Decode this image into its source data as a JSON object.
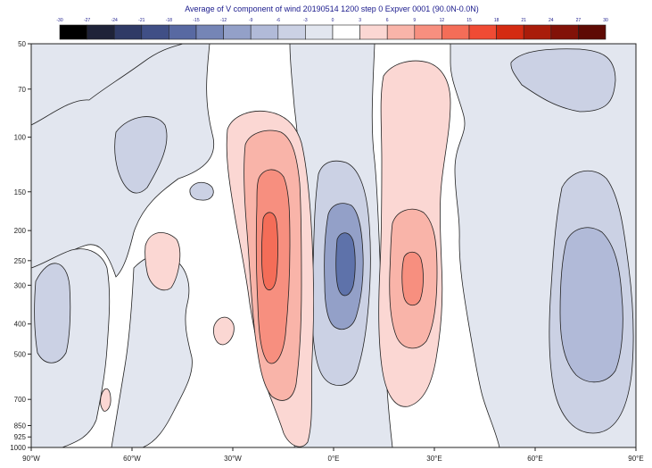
{
  "chart_data": {
    "type": "heatmap",
    "title": "Average of V component of wind 20190514 1200 step 0 Expver 0001 (90.0N-0.0N)",
    "xlabel": "",
    "ylabel": "",
    "x_ticks": [
      "90°W",
      "60°W",
      "30°W",
      "0°E",
      "30°E",
      "60°E",
      "90°E"
    ],
    "x_range": [
      -90,
      90
    ],
    "y_ticks": [
      50,
      70,
      100,
      150,
      200,
      250,
      300,
      400,
      500,
      700,
      850,
      925,
      1000
    ],
    "y_range": [
      50,
      1000
    ],
    "y_scale": "log",
    "colorbar": {
      "levels": [
        -30,
        -27,
        -24,
        -21,
        -18,
        -15,
        -12,
        -9,
        -6,
        -3,
        0,
        3,
        6,
        9,
        12,
        15,
        18,
        21,
        24,
        27,
        30
      ],
      "colors": [
        "#000000",
        "#1e2238",
        "#2f3a66",
        "#404f86",
        "#5869a2",
        "#7585b6",
        "#93a0c8",
        "#b1bad8",
        "#cbd1e4",
        "#e2e6ef",
        "#ffffff",
        "#fbd7d3",
        "#f9b4a9",
        "#f78f7f",
        "#f46d58",
        "#f04b34",
        "#d42b12",
        "#a91c0a",
        "#821208",
        "#5e0a04"
      ]
    },
    "features": [
      {
        "kind": "southerly maximum",
        "x": -18,
        "y": 250,
        "value": 9
      },
      {
        "kind": "northerly minimum",
        "x": 5,
        "y": 250,
        "value": -9
      },
      {
        "kind": "southerly maximum",
        "x": 25,
        "y": 280,
        "value": 6
      },
      {
        "kind": "northerly minimum",
        "x": 75,
        "y": 400,
        "value": -6
      }
    ]
  }
}
